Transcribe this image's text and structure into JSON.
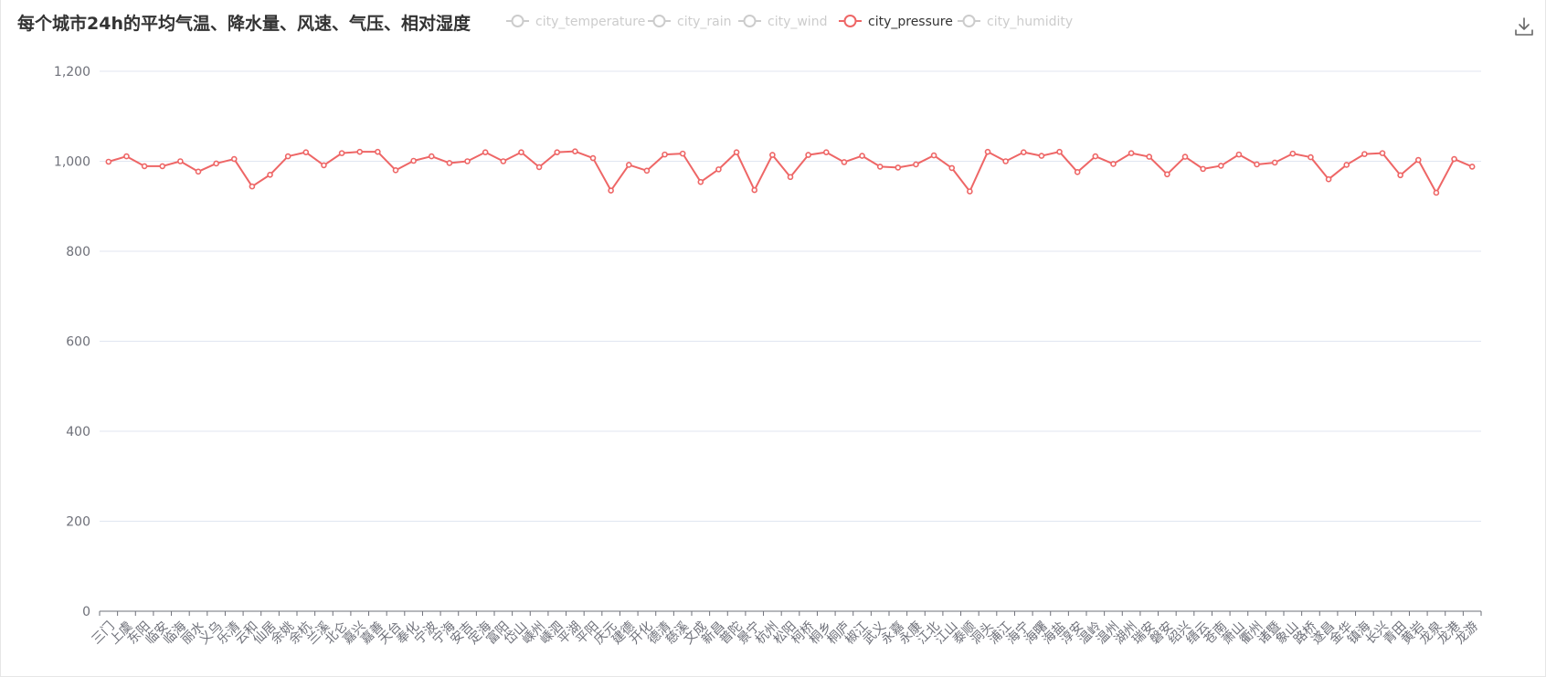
{
  "chart_data": {
    "type": "line",
    "title": "每个城市24h的平均气温、降水量、风速、气压、相对湿度",
    "legend": {
      "placement": "top",
      "items": [
        {
          "name": "city_temperature",
          "active": false
        },
        {
          "name": "city_rain",
          "active": false
        },
        {
          "name": "city_wind",
          "active": false
        },
        {
          "name": "city_pressure",
          "active": true
        },
        {
          "name": "city_humidity",
          "active": false
        }
      ]
    },
    "ylim": [
      0,
      1200
    ],
    "yticks": [
      "0",
      "200",
      "400",
      "600",
      "800",
      "1,000",
      "1,200"
    ],
    "ytick_values": [
      0,
      200,
      400,
      600,
      800,
      1000,
      1200
    ],
    "grid": true,
    "categories": [
      "三门",
      "上虞",
      "东阳",
      "临安",
      "临海",
      "丽水",
      "义乌",
      "乐清",
      "云和",
      "仙居",
      "余姚",
      "余杭",
      "兰溪",
      "北仑",
      "嘉兴",
      "嘉善",
      "天台",
      "奉化",
      "宁波",
      "宁海",
      "安吉",
      "定海",
      "富阳",
      "岱山",
      "嵊州",
      "嵊泗",
      "平湖",
      "平阳",
      "庆元",
      "建德",
      "开化",
      "德清",
      "慈溪",
      "文成",
      "新昌",
      "普陀",
      "景宁",
      "杭州",
      "松阳",
      "柯桥",
      "桐乡",
      "桐庐",
      "椒江",
      "武义",
      "永嘉",
      "永康",
      "江北",
      "江山",
      "泰顺",
      "洞头",
      "浦江",
      "海宁",
      "海曙",
      "海盐",
      "淳安",
      "温岭",
      "温州",
      "湖州",
      "瑞安",
      "磐安",
      "绍兴",
      "缙云",
      "苍南",
      "萧山",
      "衢州",
      "诸暨",
      "象山",
      "路桥",
      "遂昌",
      "金华",
      "镇海",
      "长兴",
      "青田",
      "黄岩",
      "龙泉",
      "龙港",
      "龙游"
    ],
    "series": [
      {
        "name": "city_pressure",
        "color": "#ee6666",
        "values": [
          999,
          1011,
          989,
          989,
          1000,
          977,
          995,
          1005,
          944,
          970,
          1011,
          1020,
          991,
          1018,
          1021,
          1021,
          980,
          1001,
          1011,
          996,
          1000,
          1020,
          1000,
          1020,
          987,
          1020,
          1022,
          1007,
          935,
          992,
          979,
          1015,
          1017,
          954,
          982,
          1020,
          936,
          1014,
          965,
          1014,
          1020,
          998,
          1012,
          988,
          986,
          993,
          1013,
          985,
          933,
          1021,
          1000,
          1020,
          1012,
          1021,
          976,
          1011,
          994,
          1018,
          1010,
          971,
          1010,
          983,
          990,
          1015,
          993,
          997,
          1017,
          1009,
          960,
          992,
          1016,
          1018,
          969,
          1003,
          930,
          1005,
          988
        ]
      }
    ]
  },
  "colors": {
    "active_series": "#ee6666",
    "inactive_legend": "#cccccc",
    "axis_label": "#6e7079",
    "grid": "#e0e6f1"
  },
  "toolbox": {
    "download_icon": "download-icon"
  }
}
